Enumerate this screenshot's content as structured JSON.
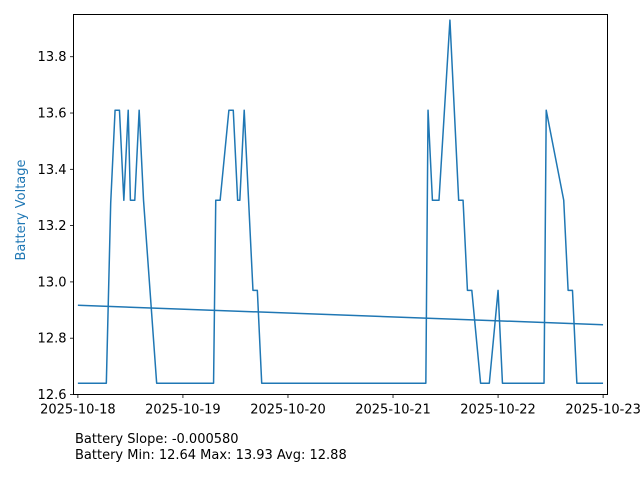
{
  "chart_data": {
    "type": "line",
    "title": "",
    "xlabel": "",
    "ylabel": "Battery Voltage",
    "colors": {
      "series": "#1f77b4",
      "axis": "#000000"
    },
    "grid": false,
    "xlim": [
      "2025-10-17T23:00",
      "2025-10-23T01:00"
    ],
    "ylim": [
      12.6,
      13.95
    ],
    "x_ticks": [
      "2025-10-18",
      "2025-10-19",
      "2025-10-20",
      "2025-10-21",
      "2025-10-22",
      "2025-10-23"
    ],
    "y_ticks": [
      "12.6",
      "12.8",
      "13.0",
      "13.2",
      "13.4",
      "13.6",
      "13.8"
    ],
    "series": [
      {
        "x": [
          "2025-10-18T00:00",
          "2025-10-18T06:30",
          "2025-10-18T07:30",
          "2025-10-18T08:30",
          "2025-10-18T09:30",
          "2025-10-18T10:30",
          "2025-10-18T11:30",
          "2025-10-18T12:00",
          "2025-10-18T13:00",
          "2025-10-18T14:00",
          "2025-10-18T15:00",
          "2025-10-18T18:00",
          "2025-10-19T07:00",
          "2025-10-19T07:30",
          "2025-10-19T08:30",
          "2025-10-19T10:30",
          "2025-10-19T11:30",
          "2025-10-19T12:30",
          "2025-10-19T13:00",
          "2025-10-19T14:00",
          "2025-10-19T16:00",
          "2025-10-19T17:00",
          "2025-10-19T18:00",
          "2025-10-19T19:00",
          "2025-10-19T20:00",
          "2025-10-19T21:00",
          "2025-10-21T07:00",
          "2025-10-21T07:30",
          "2025-10-21T08:00",
          "2025-10-21T09:00",
          "2025-10-21T10:30",
          "2025-10-21T13:00",
          "2025-10-21T15:00",
          "2025-10-21T16:00",
          "2025-10-21T17:00",
          "2025-10-21T18:00",
          "2025-10-21T20:00",
          "2025-10-21T22:00",
          "2025-10-22T00:00",
          "2025-10-22T01:00",
          "2025-10-22T09:30",
          "2025-10-22T10:30",
          "2025-10-22T11:00",
          "2025-10-22T15:00",
          "2025-10-22T16:00",
          "2025-10-22T17:00",
          "2025-10-22T18:00",
          "2025-10-22T23:59"
        ],
        "values": [
          12.64,
          12.64,
          13.28,
          13.61,
          13.61,
          13.29,
          13.61,
          13.29,
          13.29,
          13.61,
          13.29,
          12.64,
          12.64,
          13.29,
          13.29,
          13.61,
          13.61,
          13.29,
          13.29,
          13.61,
          12.97,
          12.97,
          12.64,
          12.64,
          12.64,
          12.64,
          12.64,
          12.64,
          13.61,
          13.29,
          13.29,
          13.93,
          13.29,
          13.29,
          12.97,
          12.97,
          12.64,
          12.64,
          12.97,
          12.64,
          12.64,
          12.64,
          13.61,
          13.29,
          12.97,
          12.97,
          12.64,
          12.64
        ]
      },
      {
        "x": [
          "2025-10-18T00:00",
          "2025-10-22T23:59"
        ],
        "values": [
          12.917,
          12.848
        ]
      }
    ]
  },
  "stats": {
    "slope_line": "Battery Slope: -0.000580",
    "range_line": "Battery Min: 12.64 Max: 13.93 Avg: 12.88"
  }
}
